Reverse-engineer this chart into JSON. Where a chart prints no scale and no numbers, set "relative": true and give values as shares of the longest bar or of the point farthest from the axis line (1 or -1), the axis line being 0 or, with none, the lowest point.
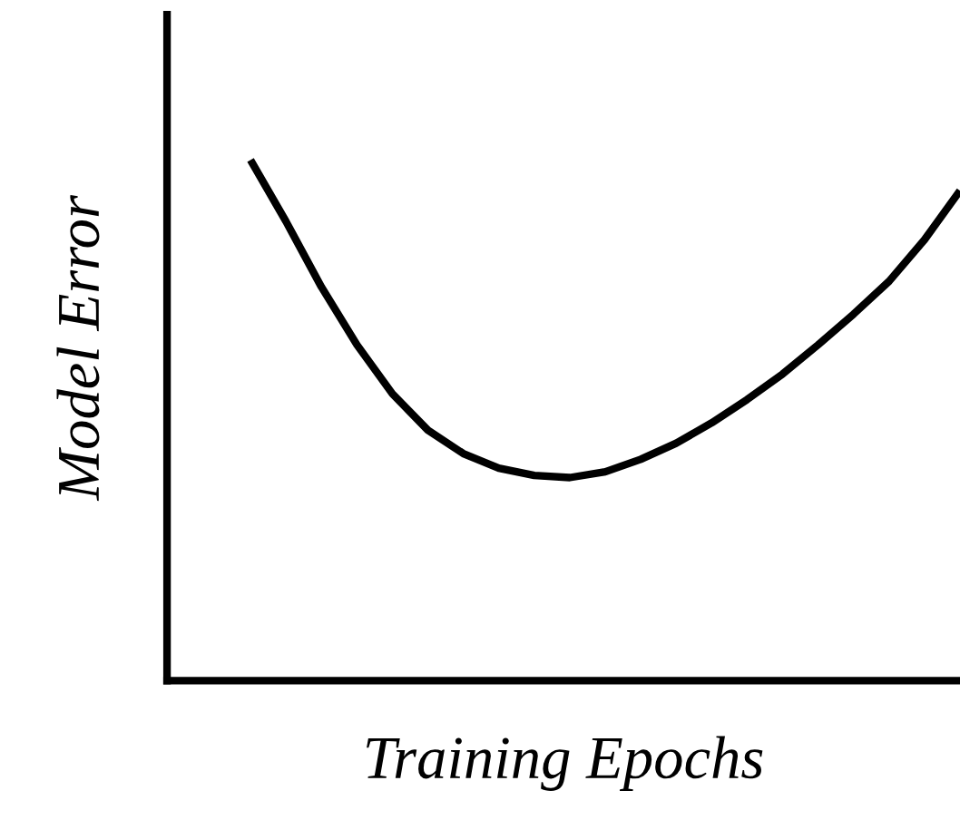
{
  "chart_data": {
    "type": "line",
    "relative": true,
    "xlabel": "Training Epochs",
    "ylabel": "Model Error",
    "categories": [
      null,
      null,
      null,
      null,
      null,
      null,
      null,
      null,
      null,
      null,
      null,
      null,
      null,
      null,
      null,
      null,
      null,
      null,
      null,
      null,
      null
    ],
    "series": [
      {
        "color": "#000000",
        "values": [
          1,
          0.882,
          0.756,
          0.645,
          0.551,
          0.481,
          0.436,
          0.408,
          0.394,
          0.39,
          0.401,
          0.425,
          0.456,
          0.495,
          0.54,
          0.589,
          0.645,
          0.704,
          0.767,
          0.847,
          0.941
        ]
      }
    ],
    "grid": false,
    "legend": false,
    "tick_labels": false,
    "marker": "none",
    "line_style": "solid"
  }
}
